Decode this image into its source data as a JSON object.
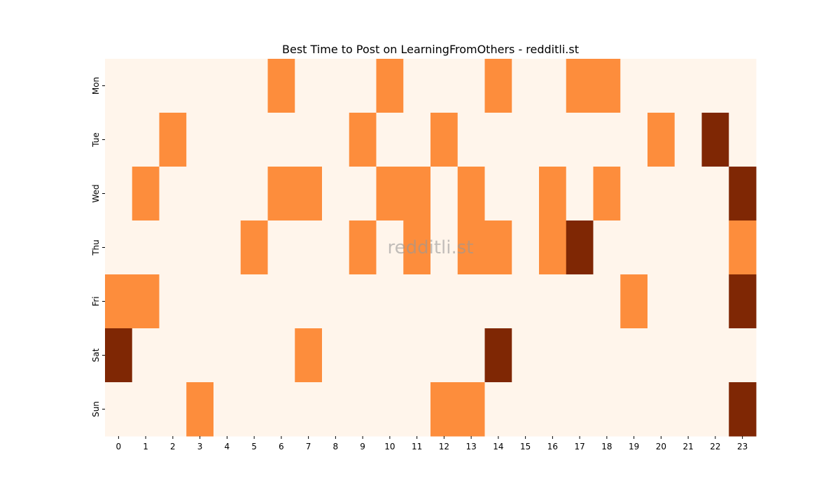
{
  "chart_data": {
    "type": "heatmap",
    "title": "Best Time to Post on LearningFromOthers - redditli.st",
    "watermark": "redditli.st",
    "xlabel": "",
    "ylabel": "",
    "x_categories": [
      "0",
      "1",
      "2",
      "3",
      "4",
      "5",
      "6",
      "7",
      "8",
      "9",
      "10",
      "11",
      "12",
      "13",
      "14",
      "15",
      "16",
      "17",
      "18",
      "19",
      "20",
      "21",
      "22",
      "23"
    ],
    "y_categories": [
      "Mon",
      "Tue",
      "Wed",
      "Thu",
      "Fri",
      "Sat",
      "Sun"
    ],
    "values": [
      [
        0,
        0,
        0,
        0,
        0,
        0,
        1,
        0,
        0,
        0,
        1,
        0,
        0,
        0,
        1,
        0,
        0,
        1,
        1,
        0,
        0,
        0,
        0,
        0
      ],
      [
        0,
        0,
        1,
        0,
        0,
        0,
        0,
        0,
        0,
        1,
        0,
        0,
        1,
        0,
        0,
        0,
        0,
        0,
        0,
        0,
        1,
        0,
        2,
        0
      ],
      [
        0,
        1,
        0,
        0,
        0,
        0,
        1,
        1,
        0,
        0,
        1,
        1,
        0,
        1,
        0,
        0,
        1,
        0,
        1,
        0,
        0,
        0,
        0,
        2
      ],
      [
        0,
        0,
        0,
        0,
        0,
        1,
        0,
        0,
        0,
        1,
        0,
        1,
        0,
        1,
        1,
        0,
        1,
        2,
        0,
        0,
        0,
        0,
        0,
        1
      ],
      [
        1,
        1,
        0,
        0,
        0,
        0,
        0,
        0,
        0,
        0,
        0,
        0,
        0,
        0,
        0,
        0,
        0,
        0,
        0,
        1,
        0,
        0,
        0,
        2
      ],
      [
        2,
        0,
        0,
        0,
        0,
        0,
        0,
        1,
        0,
        0,
        0,
        0,
        0,
        0,
        2,
        0,
        0,
        0,
        0,
        0,
        0,
        0,
        0,
        0
      ],
      [
        0,
        0,
        0,
        1,
        0,
        0,
        0,
        0,
        0,
        0,
        0,
        0,
        1,
        1,
        0,
        0,
        0,
        0,
        0,
        0,
        0,
        0,
        0,
        2
      ]
    ],
    "colormap": "Oranges",
    "colors": {
      "0": "#fff5eb",
      "1": "#fd8d3c",
      "2": "#7f2704"
    },
    "grid": false,
    "legend": "none"
  }
}
